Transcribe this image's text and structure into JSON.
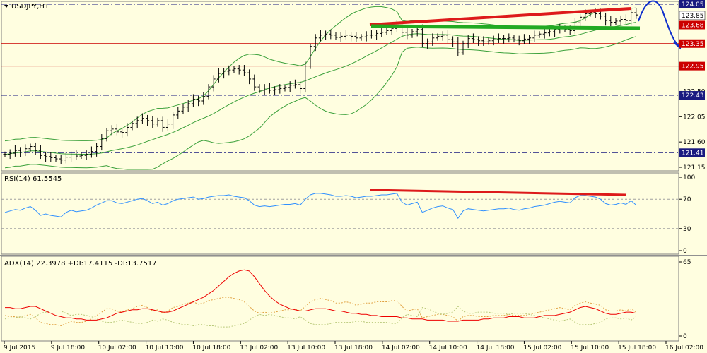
{
  "header": {
    "symbol": "USDJPY,H1",
    "rsi_label": "RSI(14) 61.5545",
    "adx_label": "ADX(14) 22.3978 +DI:17.4115 -DI:13.7517"
  },
  "colors": {
    "background": "#fffee0",
    "candles": "#000000",
    "bollinger": "#3aa03a",
    "support_resistance": "#cc0000",
    "pivot_dashdot": "#1a1a80",
    "trendline_red": "#dd1a1a",
    "trendline_green": "#22aa22",
    "forecast_arrow": "#1030cc",
    "rsi_line": "#3090ff",
    "adx_line": "#ee0000",
    "plus_di": "#e0a040",
    "minus_di": "#b8c878"
  },
  "chart_data": [
    {
      "type": "candlestick",
      "title": "USDJPY,H1",
      "ylim": [
        121.15,
        124.05
      ],
      "y_ticks": [
        124.05,
        123.85,
        123.68,
        123.35,
        122.95,
        122.5,
        122.43,
        122.05,
        121.6,
        121.41,
        121.15
      ],
      "x_ticks": [
        "9 Jul 2015",
        "9 Jul 18:00",
        "10 Jul 02:00",
        "10 Jul 10:00",
        "10 Jul 18:00",
        "13 Jul 02:00",
        "13 Jul 10:00",
        "13 Jul 18:00",
        "14 Jul 02:00",
        "14 Jul 10:00",
        "14 Jul 18:00",
        "15 Jul 02:00",
        "15 Jul 10:00",
        "15 Jul 18:00",
        "16 Jul 02:00"
      ],
      "horizontal_levels": [
        {
          "value": 124.05,
          "style": "dashdot",
          "label": "124.05"
        },
        {
          "value": 123.68,
          "style": "solid",
          "label": "123.68"
        },
        {
          "value": 123.35,
          "style": "solid",
          "label": "123.35"
        },
        {
          "value": 122.95,
          "style": "solid",
          "label": "122.95"
        },
        {
          "value": 122.43,
          "style": "dashdot",
          "label": "122.43"
        },
        {
          "value": 121.41,
          "style": "dashdot",
          "label": "121.41"
        }
      ],
      "current_price": 123.85,
      "close_series": [
        121.38,
        121.4,
        121.45,
        121.42,
        121.48,
        121.52,
        121.45,
        121.36,
        121.34,
        121.32,
        121.3,
        121.28,
        121.33,
        121.37,
        121.35,
        121.36,
        121.38,
        121.43,
        121.52,
        121.66,
        121.8,
        121.83,
        121.78,
        121.77,
        121.86,
        121.93,
        121.98,
        122.02,
        121.98,
        121.92,
        121.98,
        121.86,
        121.92,
        122.08,
        122.15,
        122.22,
        122.28,
        122.36,
        122.33,
        122.41,
        122.58,
        122.72,
        122.82,
        122.86,
        122.88,
        122.9,
        122.88,
        122.83,
        122.72,
        122.58,
        122.52,
        122.56,
        122.52,
        122.53,
        122.55,
        122.57,
        122.61,
        122.62,
        122.55,
        122.95,
        123.3,
        123.45,
        123.5,
        123.52,
        123.5,
        123.46,
        123.48,
        123.5,
        123.48,
        123.45,
        123.47,
        123.5,
        123.5,
        123.53,
        123.55,
        123.58,
        123.62,
        123.68,
        123.55,
        123.5,
        123.56,
        123.6,
        123.35,
        123.38,
        123.45,
        123.48,
        123.5,
        123.42,
        123.38,
        123.2,
        123.35,
        123.44,
        123.42,
        123.4,
        123.38,
        123.4,
        123.42,
        123.44,
        123.44,
        123.45,
        123.42,
        123.4,
        123.43,
        123.45,
        123.5,
        123.52,
        123.54,
        123.56,
        123.6,
        123.62,
        123.6,
        123.58,
        123.72,
        123.82,
        123.88,
        123.9,
        123.88,
        123.84,
        123.76,
        123.73,
        123.75,
        123.78,
        123.76,
        123.9,
        123.86
      ]
    },
    {
      "type": "line",
      "title": "RSI(14) 61.5545",
      "ylim": [
        0,
        100
      ],
      "y_ticks": [
        100,
        70,
        30,
        0
      ],
      "levels": [
        70,
        30
      ],
      "series": [
        {
          "name": "RSI(14)",
          "values": [
            52,
            54,
            56,
            55,
            58,
            60,
            55,
            48,
            50,
            48,
            47,
            46,
            52,
            55,
            53,
            54,
            55,
            58,
            62,
            65,
            68,
            68,
            65,
            64,
            66,
            68,
            70,
            71,
            68,
            64,
            66,
            62,
            64,
            68,
            70,
            71,
            72,
            73,
            70,
            71,
            73,
            74,
            75,
            75,
            76,
            74,
            73,
            72,
            68,
            62,
            60,
            61,
            60,
            61,
            62,
            63,
            63,
            64,
            62,
            70,
            76,
            78,
            78,
            77,
            76,
            74,
            74,
            75,
            74,
            72,
            73,
            74,
            74,
            75,
            76,
            76,
            77,
            78,
            66,
            62,
            64,
            66,
            52,
            55,
            58,
            60,
            61,
            58,
            56,
            44,
            54,
            57,
            56,
            55,
            54,
            55,
            56,
            57,
            57,
            58,
            56,
            55,
            57,
            58,
            60,
            61,
            62,
            64,
            66,
            67,
            66,
            65,
            72,
            75,
            75,
            74,
            73,
            70,
            64,
            62,
            63,
            65,
            63,
            68,
            62
          ]
        }
      ]
    },
    {
      "type": "line",
      "title": "ADX(14) 22.3978 +DI:17.4115 -DI:13.7517",
      "ylim": [
        0,
        65
      ],
      "y_ticks": [
        65,
        0
      ],
      "series": [
        {
          "name": "ADX(14)",
          "values": [
            25,
            25,
            24,
            24,
            25,
            26,
            26,
            24,
            22,
            20,
            18,
            17,
            16,
            16,
            15,
            15,
            14,
            14,
            14,
            15,
            16,
            18,
            20,
            21,
            22,
            23,
            23,
            24,
            24,
            23,
            22,
            21,
            21,
            22,
            24,
            26,
            28,
            30,
            32,
            34,
            37,
            40,
            44,
            48,
            52,
            55,
            57,
            58,
            57,
            52,
            46,
            40,
            35,
            31,
            28,
            26,
            24,
            23,
            22,
            22,
            23,
            24,
            24,
            24,
            23,
            22,
            22,
            21,
            20,
            20,
            19,
            19,
            18,
            18,
            17,
            17,
            17,
            17,
            16,
            16,
            15,
            15,
            15,
            14,
            14,
            14,
            14,
            13,
            13,
            13,
            14,
            14,
            14,
            14,
            15,
            15,
            16,
            16,
            16,
            17,
            17,
            17,
            16,
            16,
            16,
            17,
            18,
            18,
            18,
            19,
            20,
            21,
            23,
            25,
            26,
            25,
            24,
            22,
            20,
            19,
            19,
            20,
            21,
            21,
            20
          ]
        },
        {
          "name": "+DI",
          "values": [
            18,
            17,
            17,
            16,
            18,
            19,
            16,
            12,
            11,
            10,
            10,
            9,
            11,
            13,
            12,
            12,
            13,
            15,
            18,
            21,
            24,
            24,
            22,
            21,
            23,
            24,
            26,
            27,
            25,
            22,
            23,
            20,
            22,
            25,
            26,
            28,
            29,
            30,
            28,
            29,
            31,
            32,
            33,
            34,
            34,
            33,
            32,
            30,
            26,
            22,
            20,
            21,
            20,
            21,
            22,
            23,
            23,
            24,
            22,
            26,
            30,
            32,
            33,
            32,
            31,
            29,
            29,
            30,
            29,
            27,
            28,
            29,
            29,
            30,
            30,
            30,
            31,
            31,
            26,
            22,
            23,
            24,
            16,
            17,
            18,
            19,
            19,
            18,
            17,
            13,
            17,
            18,
            18,
            17,
            17,
            17,
            18,
            18,
            18,
            19,
            18,
            18,
            18,
            19,
            20,
            21,
            22,
            23,
            24,
            25,
            24,
            23,
            27,
            29,
            30,
            29,
            28,
            27,
            23,
            22,
            22,
            23,
            22,
            24,
            21
          ]
        },
        {
          "name": "-DI",
          "values": [
            15,
            16,
            16,
            17,
            16,
            15,
            17,
            20,
            21,
            22,
            22,
            22,
            20,
            18,
            19,
            19,
            18,
            17,
            15,
            13,
            12,
            12,
            13,
            14,
            13,
            12,
            11,
            11,
            12,
            14,
            13,
            15,
            14,
            12,
            11,
            10,
            10,
            9,
            10,
            10,
            9,
            9,
            8,
            8,
            8,
            9,
            10,
            11,
            14,
            17,
            19,
            18,
            19,
            18,
            17,
            16,
            16,
            15,
            17,
            14,
            11,
            10,
            10,
            10,
            11,
            12,
            12,
            12,
            12,
            13,
            13,
            12,
            12,
            12,
            12,
            12,
            11,
            11,
            16,
            19,
            18,
            17,
            25,
            24,
            22,
            20,
            19,
            20,
            21,
            26,
            22,
            20,
            20,
            21,
            21,
            21,
            20,
            20,
            20,
            19,
            20,
            20,
            20,
            19,
            18,
            17,
            16,
            15,
            14,
            13,
            14,
            15,
            12,
            10,
            10,
            10,
            11,
            12,
            15,
            16,
            16,
            15,
            16,
            14,
            17
          ]
        }
      ]
    }
  ]
}
